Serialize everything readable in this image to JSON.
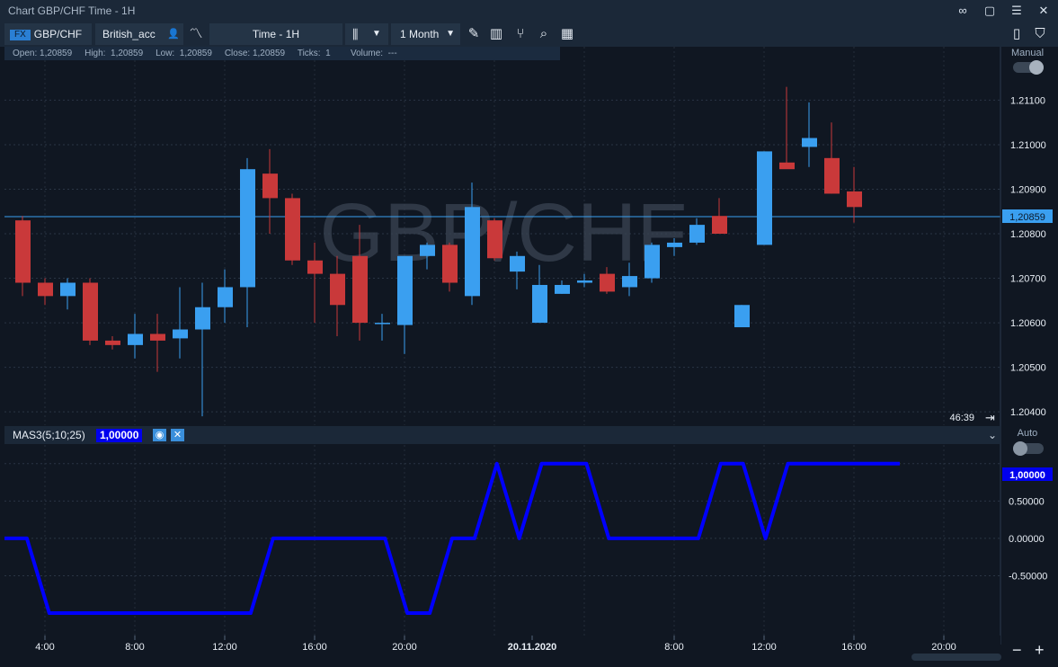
{
  "window": {
    "title": "Chart GBP/CHF Time - 1H",
    "controls": [
      "link-icon",
      "restore-icon",
      "menu-icon",
      "close-icon"
    ]
  },
  "toolbar": {
    "fx_badge": "FX",
    "symbol": "GBP/CHF",
    "account": "British_acc",
    "timeframe": "Time - 1H",
    "period": "1 Month",
    "icons": [
      "account-user-icon",
      "indicator-wave-icon",
      "candlestick-type-icon",
      "chevron-down-icon",
      "pencil-draw-icon",
      "bar-chart-icon",
      "fork-tool-icon",
      "search-icon",
      "calendar-grid-icon",
      "template-icon",
      "basket-icon"
    ]
  },
  "infobar": {
    "open_label": "Open:",
    "open": "1,20859",
    "high_label": "High:",
    "high": "1,20859",
    "low_label": "Low:",
    "low": "1,20859",
    "close_label": "Close:",
    "close": "1,20859",
    "ticks_label": "Ticks:",
    "ticks": "1",
    "volume_label": "Volume:",
    "volume": "---"
  },
  "price_pane": {
    "watermark": "GBP/CHF",
    "scale_mode": "Manual",
    "current_price": "1,20859",
    "countdown": "46:39"
  },
  "indicator": {
    "name": "MAS3(5;10;25)",
    "value": "1,00000",
    "scale_mode": "Auto",
    "color": "#0000ff"
  },
  "colors": {
    "bull": "#3a9ff0",
    "bear": "#c9393a",
    "background": "#101722",
    "panel": "#1b2838",
    "price_line": "#3a9ff0"
  },
  "chart_data": [
    {
      "type": "candlestick",
      "price_ticks": [
        "1.21100",
        "1.21000",
        "1.20900",
        "1.20800",
        "1.20700",
        "1.20600",
        "1.20500",
        "1.20400"
      ],
      "ylim": [
        1.2037,
        1.2122
      ],
      "candles": [
        {
          "time": "2:00",
          "open": 1.2083,
          "high": 1.2084,
          "low": 1.2066,
          "close": 1.2069
        },
        {
          "time": "3:00",
          "open": 1.2069,
          "high": 1.207,
          "low": 1.2064,
          "close": 1.2066
        },
        {
          "time": "4:00",
          "open": 1.2066,
          "high": 1.207,
          "low": 1.2063,
          "close": 1.2069
        },
        {
          "time": "5:00",
          "open": 1.2069,
          "high": 1.207,
          "low": 1.2055,
          "close": 1.2056
        },
        {
          "time": "6:00",
          "open": 1.2056,
          "high": 1.2057,
          "low": 1.2054,
          "close": 1.2055
        },
        {
          "time": "7:00",
          "open": 1.2055,
          "high": 1.2062,
          "low": 1.2052,
          "close": 1.20575
        },
        {
          "time": "8:00",
          "open": 1.20575,
          "high": 1.2062,
          "low": 1.2049,
          "close": 1.2056
        },
        {
          "time": "9:00",
          "open": 1.20565,
          "high": 1.2068,
          "low": 1.2052,
          "close": 1.20585
        },
        {
          "time": "10:00",
          "open": 1.20585,
          "high": 1.2069,
          "low": 1.2039,
          "close": 1.20635
        },
        {
          "time": "11:00",
          "open": 1.20635,
          "high": 1.2072,
          "low": 1.206,
          "close": 1.2068
        },
        {
          "time": "12:00",
          "open": 1.2068,
          "high": 1.2097,
          "low": 1.2059,
          "close": 1.20945
        },
        {
          "time": "13:00",
          "open": 1.20935,
          "high": 1.2099,
          "low": 1.208,
          "close": 1.2088
        },
        {
          "time": "14:00",
          "open": 1.2088,
          "high": 1.2089,
          "low": 1.2073,
          "close": 1.2074
        },
        {
          "time": "15:00",
          "open": 1.2074,
          "high": 1.2078,
          "low": 1.206,
          "close": 1.2071
        },
        {
          "time": "16:00",
          "open": 1.2071,
          "high": 1.2075,
          "low": 1.2057,
          "close": 1.2064
        },
        {
          "time": "17:00",
          "open": 1.2075,
          "high": 1.2082,
          "low": 1.2056,
          "close": 1.206
        },
        {
          "time": "18:00",
          "open": 1.206,
          "high": 1.2062,
          "low": 1.2056,
          "close": 1.206
        },
        {
          "time": "19:00",
          "open": 1.20595,
          "high": 1.2075,
          "low": 1.2053,
          "close": 1.2075
        },
        {
          "time": "20:00",
          "open": 1.2075,
          "high": 1.2078,
          "low": 1.2072,
          "close": 1.20775
        },
        {
          "time": "21:00",
          "open": 1.20775,
          "high": 1.2078,
          "low": 1.2067,
          "close": 1.2069
        },
        {
          "time": "22:00",
          "open": 1.2066,
          "high": 1.20915,
          "low": 1.2064,
          "close": 1.2086
        },
        {
          "time": "23:00",
          "open": 1.2083,
          "high": 1.20835,
          "low": 1.2074,
          "close": 1.20745
        },
        {
          "time": "0:00",
          "open": 1.20715,
          "high": 1.2076,
          "low": 1.20675,
          "close": 1.2075
        },
        {
          "time": "1:00",
          "open": 1.206,
          "high": 1.2073,
          "low": 1.206,
          "close": 1.20685
        },
        {
          "time": "2:00",
          "open": 1.20665,
          "high": 1.20695,
          "low": 1.20665,
          "close": 1.20685
        },
        {
          "time": "3:00",
          "open": 1.2069,
          "high": 1.2071,
          "low": 1.2068,
          "close": 1.20695
        },
        {
          "time": "4:00",
          "open": 1.2071,
          "high": 1.20725,
          "low": 1.20665,
          "close": 1.2067
        },
        {
          "time": "5:00",
          "open": 1.2068,
          "high": 1.20735,
          "low": 1.2066,
          "close": 1.20705
        },
        {
          "time": "6:00",
          "open": 1.207,
          "high": 1.2078,
          "low": 1.2069,
          "close": 1.20775
        },
        {
          "time": "7:00",
          "open": 1.2077,
          "high": 1.2079,
          "low": 1.2075,
          "close": 1.2078
        },
        {
          "time": "8:00",
          "open": 1.2078,
          "high": 1.20835,
          "low": 1.20775,
          "close": 1.2082
        },
        {
          "time": "9:00",
          "open": 1.2084,
          "high": 1.2088,
          "low": 1.208,
          "close": 1.208
        },
        {
          "time": "10:00",
          "open": 1.2059,
          "high": 1.2064,
          "low": 1.2059,
          "close": 1.2064
        },
        {
          "time": "11:00",
          "open": 1.20775,
          "high": 1.20985,
          "low": 1.20775,
          "close": 1.20985
        },
        {
          "time": "12:00",
          "open": 1.2096,
          "high": 1.2113,
          "low": 1.2095,
          "close": 1.20945
        },
        {
          "time": "13:00",
          "open": 1.20995,
          "high": 1.21095,
          "low": 1.2095,
          "close": 1.21015
        },
        {
          "time": "14:00",
          "open": 1.2097,
          "high": 1.2105,
          "low": 1.2089,
          "close": 1.2089
        },
        {
          "time": "15:00",
          "open": 1.20895,
          "high": 1.2095,
          "low": 1.20825,
          "close": 1.2086
        }
      ]
    },
    {
      "type": "line",
      "name": "MAS3(5;10;25)",
      "y_ticks": [
        "1,00000",
        "0.50000",
        "0.00000",
        "-0.50000"
      ],
      "ylim": [
        -1.3,
        1.25
      ],
      "x_ticks": [
        "4:00",
        "8:00",
        "12:00",
        "16:00",
        "20:00",
        "20.11.2020",
        "8:00",
        "12:00",
        "16:00",
        "20:00"
      ],
      "values": [
        0,
        0,
        -1,
        -1,
        -1,
        -1,
        -1,
        -1,
        -1,
        -1,
        -1,
        -1,
        0,
        0,
        0,
        0,
        0,
        0,
        -1,
        -1,
        0,
        0,
        1,
        0,
        1,
        1,
        1,
        0,
        0,
        0,
        0,
        0,
        1,
        1,
        0,
        1,
        1,
        1,
        1,
        1,
        1
      ]
    }
  ]
}
